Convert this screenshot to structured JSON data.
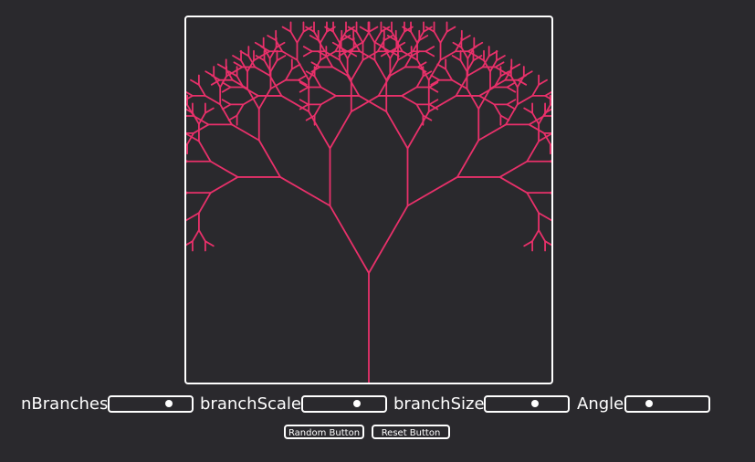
{
  "colors": {
    "background": "#2a292d",
    "frame": "#ffffff",
    "branch": "#e8306a"
  },
  "canvas": {
    "tree": {
      "depth": 8,
      "spread_angle_deg": 30,
      "length_scale": 0.74
    }
  },
  "controls": [
    {
      "label": "nBranches",
      "value": 0.72
    },
    {
      "label": "branchScale",
      "value": 0.65
    },
    {
      "label": "branchSize",
      "value": 0.6
    },
    {
      "label": "Angle",
      "value": 0.28
    }
  ],
  "buttons": {
    "random_label": "Random Button",
    "reset_label": "Reset Button"
  }
}
